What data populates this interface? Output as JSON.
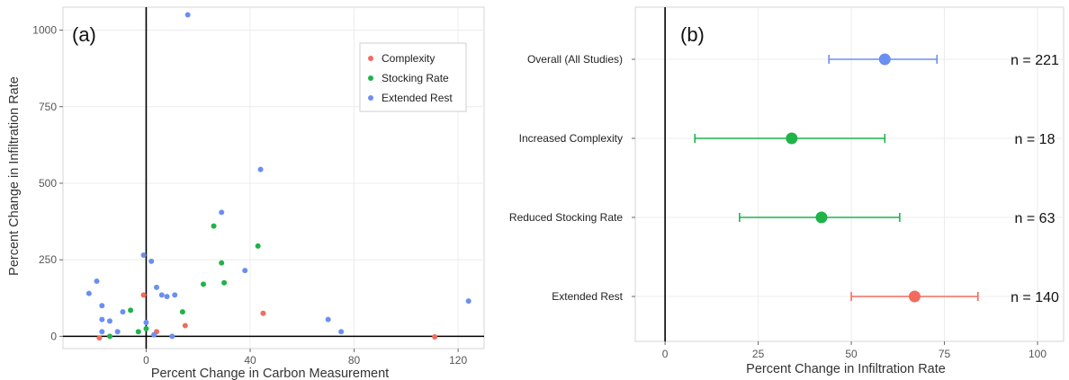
{
  "chart_data": [
    {
      "type": "scatter",
      "panel_label": "(a)",
      "xlabel": "Percent Change in Carbon Measurement",
      "ylabel": "Percent Change in Infiltration Rate",
      "xlim": [
        -32,
        130
      ],
      "ylim": [
        -40,
        1075
      ],
      "xticks": [
        0,
        40,
        80,
        120
      ],
      "yticks": [
        0,
        250,
        500,
        750,
        1000
      ],
      "grid": true,
      "legend_position": "top-right",
      "series": [
        {
          "name": "Complexity",
          "color": "#f26b5e",
          "points": [
            [
              -18,
              -5
            ],
            [
              -1,
              135
            ],
            [
              4,
              15
            ],
            [
              15,
              35
            ],
            [
              45,
              75
            ],
            [
              111,
              -2
            ]
          ]
        },
        {
          "name": "Stocking Rate",
          "color": "#1fb34a",
          "points": [
            [
              -14,
              0
            ],
            [
              -6,
              85
            ],
            [
              -3,
              15
            ],
            [
              0,
              25
            ],
            [
              14,
              80
            ],
            [
              22,
              170
            ],
            [
              26,
              360
            ],
            [
              29,
              240
            ],
            [
              30,
              175
            ],
            [
              43,
              295
            ]
          ]
        },
        {
          "name": "Extended Rest",
          "color": "#6b8ff0",
          "points": [
            [
              -22,
              140
            ],
            [
              -19,
              180
            ],
            [
              -17,
              100
            ],
            [
              -17,
              55
            ],
            [
              -17,
              15
            ],
            [
              -14,
              50
            ],
            [
              -11,
              15
            ],
            [
              -9,
              80
            ],
            [
              -1,
              265
            ],
            [
              0,
              45
            ],
            [
              2,
              245
            ],
            [
              3,
              5
            ],
            [
              4,
              160
            ],
            [
              6,
              135
            ],
            [
              8,
              130
            ],
            [
              10,
              0
            ],
            [
              11,
              135
            ],
            [
              16,
              1050
            ],
            [
              29,
              405
            ],
            [
              38,
              215
            ],
            [
              44,
              545
            ],
            [
              70,
              55
            ],
            [
              75,
              15
            ],
            [
              124,
              115
            ]
          ]
        }
      ]
    },
    {
      "type": "errorbar",
      "panel_label": "(b)",
      "xlabel": "Percent Change in Infiltration Rate",
      "xlim": [
        -8,
        107
      ],
      "xticks": [
        0,
        25,
        50,
        75,
        100
      ],
      "grid": true,
      "rows": [
        {
          "label": "Overall (All Studies)",
          "estimate": 59,
          "low": 44,
          "high": 73,
          "n": "n = 221",
          "color": "#6b8ff0"
        },
        {
          "label": "Increased Complexity",
          "estimate": 34,
          "low": 8,
          "high": 59,
          "n": "n = 18",
          "color": "#1fb34a"
        },
        {
          "label": "Reduced Stocking Rate",
          "estimate": 42,
          "low": 20,
          "high": 63,
          "n": "n = 63",
          "color": "#1fb34a"
        },
        {
          "label": "Extended Rest",
          "estimate": 67,
          "low": 50,
          "high": 84,
          "n": "n = 140",
          "color": "#f26b5e"
        }
      ]
    }
  ]
}
